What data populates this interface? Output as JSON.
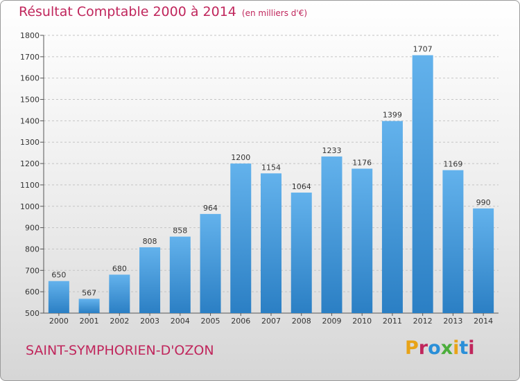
{
  "header": {
    "title": "Résultat Comptable 2000 à 2014",
    "subtitle": "(en milliers d'€)"
  },
  "footer": {
    "place": "SAINT-SYMPHORIEN-D'OZON",
    "logo": "Proxiti",
    "logo_colors": [
      "#e8a317",
      "#c0265c",
      "#2a8fd8",
      "#4cae3c",
      "#e8a317",
      "#2a8fd8",
      "#c0265c"
    ]
  },
  "colors": {
    "bar_top": "#63b2ec",
    "bar_bottom": "#2b7fc4",
    "accent": "#c0265c"
  },
  "chart_data": {
    "type": "bar",
    "categories": [
      "2000",
      "2001",
      "2002",
      "2003",
      "2004",
      "2005",
      "2006",
      "2007",
      "2008",
      "2009",
      "2010",
      "2011",
      "2012",
      "2013",
      "2014"
    ],
    "values": [
      650,
      567,
      680,
      808,
      858,
      964,
      1200,
      1154,
      1064,
      1233,
      1176,
      1399,
      1707,
      1169,
      990
    ],
    "ylim": [
      500,
      1800
    ],
    "yticks": [
      500,
      600,
      700,
      800,
      900,
      1000,
      1100,
      1200,
      1300,
      1400,
      1500,
      1600,
      1700,
      1800
    ],
    "grid": true
  }
}
